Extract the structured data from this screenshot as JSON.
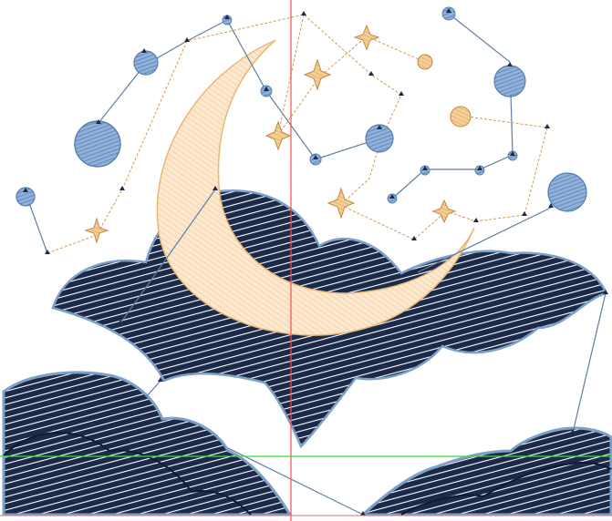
{
  "colors": {
    "background": "#ffffff",
    "cloud_dark": "#1c2a4a",
    "cloud_edge": "#7ea0c8",
    "moon_fill": "#fbe8cf",
    "moon_stroke": "#e8b877",
    "planet_fill": "#8fb1da",
    "planet_stroke": "#5a7fae",
    "star_fill": "#f6cf97",
    "star_stroke": "#c28a40",
    "jump_blue": "#5f7fa6",
    "jump_orange": "#d49a50",
    "guide_vertical": "#ff4d4d",
    "guide_horizontal": "#33dd33"
  },
  "layers": {
    "moon": "crescent-moon",
    "clouds": [
      "upper-cloud-bank",
      "lower-left-cloud",
      "lower-right-cloud"
    ],
    "planets": 9,
    "stars": 8
  },
  "guides": {
    "vertical": true,
    "horizontal": true
  }
}
